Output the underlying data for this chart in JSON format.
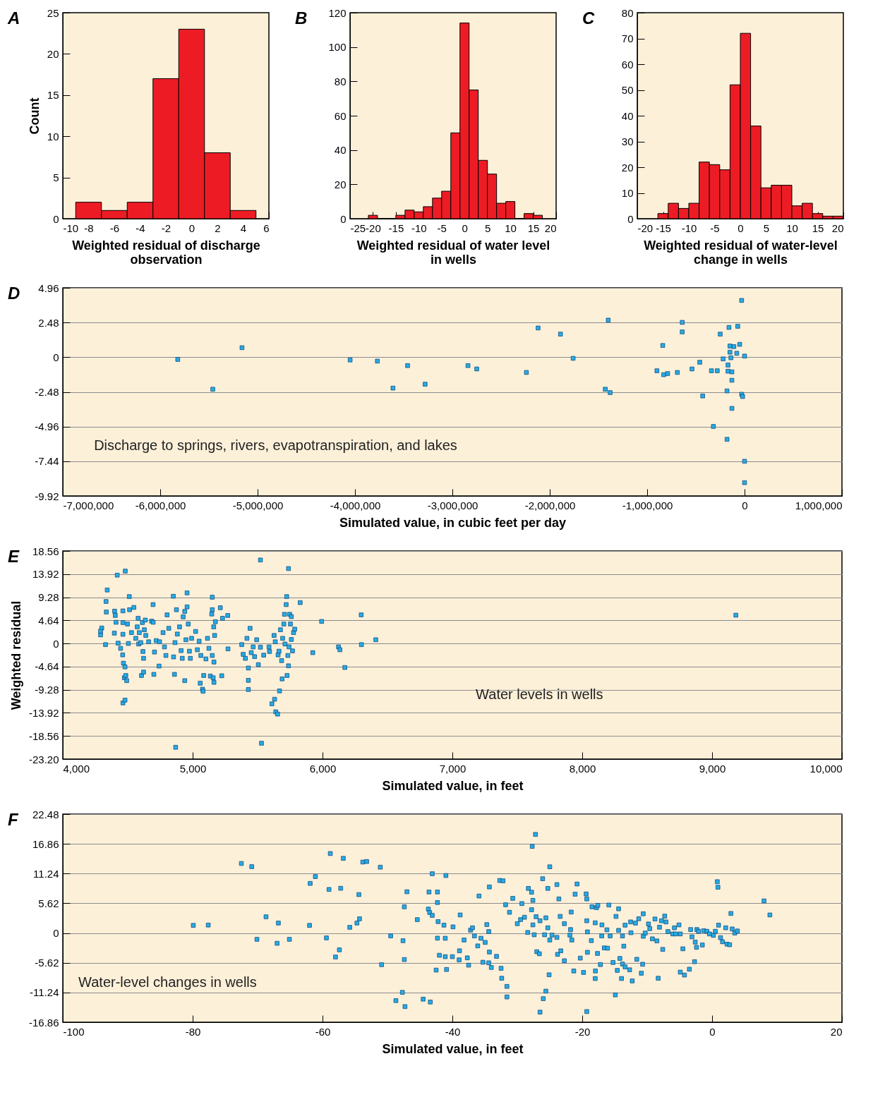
{
  "chart_data": [
    {
      "type": "histogram",
      "title": "A",
      "xlabel": "Weighted residual of discharge observation",
      "ylabel": "Count",
      "color": "#ed1c24",
      "bins": [
        -9,
        -7,
        -5,
        -3,
        -1,
        1,
        3,
        5
      ],
      "values": [
        2,
        1,
        2,
        17,
        23,
        8,
        1
      ],
      "xlim": [
        -10,
        6
      ],
      "xticks": [
        -10,
        -8,
        -6,
        -4,
        -2,
        0,
        2,
        4,
        6
      ],
      "ylim": [
        0,
        25
      ],
      "yticks": [
        0,
        5,
        10,
        15,
        20,
        25
      ],
      "grid": false
    },
    {
      "type": "histogram",
      "title": "B",
      "xlabel": "Weighted residual of water level in wells",
      "color": "#ed1c24",
      "bins": [
        -21,
        -19,
        -17,
        -15,
        -13,
        -11,
        -9,
        -7,
        -5,
        -3,
        -1,
        1,
        3,
        5,
        7,
        9,
        11,
        13,
        15,
        17
      ],
      "values": [
        2,
        0,
        0,
        2,
        5,
        4,
        7,
        12,
        16,
        50,
        114,
        75,
        34,
        26,
        9,
        10,
        0,
        3,
        2
      ],
      "xlim": [
        -25,
        20
      ],
      "xticks": [
        -25,
        -20,
        -15,
        -10,
        -5,
        0,
        5,
        10,
        15,
        20
      ],
      "ylim": [
        0,
        120
      ],
      "yticks": [
        0,
        20,
        40,
        60,
        80,
        100,
        120
      ],
      "grid": false
    },
    {
      "type": "histogram",
      "title": "C",
      "xlabel": "Weighted residual of water-level change in wells",
      "color": "#ed1c24",
      "bins": [
        -16,
        -14,
        -12,
        -10,
        -8,
        -6,
        -4,
        -2,
        0,
        2,
        4,
        6,
        8,
        10,
        12,
        14,
        16,
        18,
        20
      ],
      "values": [
        2,
        6,
        4,
        6,
        22,
        21,
        19,
        52,
        72,
        36,
        12,
        13,
        13,
        5,
        6,
        2,
        1,
        1
      ],
      "xlim": [
        -20,
        20
      ],
      "xticks": [
        -20,
        -15,
        -10,
        -5,
        0,
        5,
        10,
        15,
        20
      ],
      "ylim": [
        0,
        80
      ],
      "yticks": [
        0,
        10,
        20,
        30,
        40,
        50,
        60,
        70,
        80
      ],
      "grid": false
    },
    {
      "type": "scatter",
      "title": "D",
      "xlabel": "Simulated value, in cubic feet per day",
      "color": "#29abe2",
      "marker": "square",
      "grid": "y",
      "annotations": [
        "Discharge to springs, rivers, evapotranspiration, and lakes"
      ],
      "x": [
        -5820000,
        -5460000,
        -5160000,
        -4050000,
        -3770000,
        -3610000,
        -3460000,
        -3280000,
        -2840000,
        -2750000,
        -2240000,
        -2120000,
        -1890000,
        -1760000,
        -1430000,
        -1400000,
        -1380000,
        -900000,
        -840000,
        -830000,
        -790000,
        -690000,
        -640000,
        -640000,
        -540000,
        -460000,
        -430000,
        -340000,
        -320000,
        -280000,
        -250000,
        -220000,
        -180000,
        -180000,
        -170000,
        -170000,
        -160000,
        -150000,
        -150000,
        -140000,
        -130000,
        -130000,
        -130000,
        -110000,
        -80000,
        -70000,
        -50000,
        -30000,
        -20000,
        -30000,
        0,
        0,
        0
      ],
      "values": [
        -0.16,
        -2.29,
        0.68,
        -0.2,
        -0.28,
        -2.21,
        -0.6,
        -1.93,
        -0.6,
        -0.84,
        -1.09,
        2.09,
        1.65,
        -0.08,
        -2.29,
        2.65,
        -2.53,
        -0.97,
        0.84,
        -1.25,
        -1.17,
        -1.09,
        2.49,
        1.81,
        -0.84,
        -0.36,
        -2.77,
        -0.97,
        -4.95,
        -0.97,
        1.65,
        -0.12,
        -2.41,
        -5.87,
        -1.0,
        -0.56,
        2.13,
        0.8,
        0.36,
        -0.04,
        -1.05,
        -1.65,
        -3.66,
        0.76,
        0.28,
        2.21,
        0.92,
        -2.65,
        -2.81,
        4.06,
        0.08,
        -7.44,
        -8.97
      ],
      "xlim": [
        -7000000,
        1000000
      ],
      "xticks": [
        {
          "value": -7000000,
          "label": "-7,000,000"
        },
        {
          "value": -6000000,
          "label": "-6,000,000"
        },
        {
          "value": -5000000,
          "label": "-5,000,000"
        },
        {
          "value": -4000000,
          "label": "-4,000,000"
        },
        {
          "value": -3000000,
          "label": "-3,000,000"
        },
        {
          "value": -2000000,
          "label": "-2,000,000"
        },
        {
          "value": -1000000,
          "label": "-1,000,000"
        },
        0,
        {
          "value": 1000000,
          "label": "1,000,000"
        }
      ],
      "ylim": [
        -9.92,
        4.96
      ],
      "yticks": [
        -9.92,
        -7.44,
        -4.96,
        -2.48,
        0,
        2.48,
        4.96
      ]
    },
    {
      "type": "scatter",
      "title": "E",
      "xlabel": "Simulated value, in feet",
      "ylabel": "Weighted residual",
      "color": "#29abe2",
      "marker": "square",
      "grid": "y",
      "annotations": [
        "Water levels in wells"
      ],
      "x": [
        4291,
        4300,
        4291,
        4329,
        4333,
        4342,
        4335,
        4397,
        4399,
        4404,
        4410,
        4419,
        4426,
        4445,
        4461,
        4463,
        4463,
        4463,
        4467,
        4479,
        4481,
        4463,
        4479,
        4474,
        4492,
        4485,
        4498,
        4505,
        4512,
        4514,
        4529,
        4547,
        4562,
        4573,
        4580,
        4584,
        4589,
        4600,
        4613,
        4617,
        4622,
        4628,
        4635,
        4639,
        4606,
        4622,
        4661,
        4684,
        4695,
        4696,
        4701,
        4706,
        4719,
        4741,
        4745,
        4772,
        4783,
        4794,
        4803,
        4816,
        4851,
        4853,
        4860,
        4864,
        4869,
        4875,
        4882,
        4899,
        4911,
        4920,
        4927,
        4939,
        4939,
        4948,
        4957,
        4957,
        4966,
        4975,
        4982,
        4992,
        5023,
        5036,
        5050,
        5058,
        5063,
        5076,
        5080,
        5085,
        5102,
        5114,
        5125,
        5136,
        5147,
        5151,
        5151,
        5151,
        5158,
        5162,
        5164,
        5164,
        5169,
        5175,
        5213,
        5224,
        5230,
        5270,
        5272,
        5378,
        5389,
        5406,
        5418,
        5429,
        5429,
        5429,
        5442,
        5451,
        5466,
        5477,
        5493,
        5506,
        5522,
        5530,
        5522,
        5547,
        5588,
        5592,
        5610,
        5627,
        5631,
        5636,
        5640,
        5654,
        5658,
        5665,
        5669,
        5676,
        5685,
        5689,
        5693,
        5702,
        5707,
        5711,
        5720,
        5724,
        5727,
        5733,
        5738,
        5738,
        5742,
        5747,
        5753,
        5760,
        5760,
        5769,
        5777,
        5786,
        5828,
        5925,
        5993,
        6123,
        6134,
        6172,
        6298,
        6300,
        6410,
        9183
      ],
      "values": [
        1.72,
        3.1,
        2.47,
        -0.23,
        8.43,
        10.73,
        6.31,
        2.07,
        6.48,
        5.62,
        4.25,
        13.71,
        0.06,
        -0.98,
        -2.29,
        6.54,
        4.19,
        1.84,
        -3.96,
        -4.7,
        14.52,
        -11.93,
        -11.36,
        -6.88,
        -7.46,
        -6.43,
        3.9,
        0,
        9.41,
        6.77,
        2.18,
        7.23,
        1.03,
        3.33,
        5.05,
        -0.11,
        2.18,
        0.17,
        4.19,
        -1.61,
        -2.98,
        2.75,
        4.7,
        1.61,
        -6.43,
        -5.74,
        0.34,
        4.48,
        7.8,
        4.25,
        -6.2,
        -1.72,
        0.57,
        -4.53,
        0.34,
        2.18,
        -0.69,
        -2.41,
        5.74,
        3.04,
        9.47,
        -2.7,
        -6.2,
        0.17,
        -20.83,
        6.77,
        1.89,
        3.33,
        -1.43,
        -2.98,
        5.34,
        -7.46,
        6.43,
        0.75,
        10.15,
        7.34,
        3.9,
        -1.55,
        -2.98,
        1.03,
        2.41,
        -1.26,
        0.46,
        -7.97,
        -2.41,
        -9.18,
        -9.58,
        -6.43,
        -3.1,
        1.03,
        -0.98,
        -6.54,
        5.91,
        9.29,
        6.77,
        -2.41,
        -6.88,
        3.33,
        -7.8,
        -3.73,
        1.61,
        4.36,
        7.17,
        -6.48,
        5.05,
        5.62,
        -1.09,
        -0.23,
        -2.18,
        -2.98,
        1.03,
        -4.93,
        -7.4,
        -9.24,
        3.04,
        -1.84,
        -0.69,
        -2.64,
        0.75,
        -4.25,
        16.75,
        -20.02,
        -0.75,
        -2.35,
        -0.69,
        -1.61,
        -12.11,
        1.61,
        -11.19,
        0.34,
        -13.71,
        -14.17,
        -2.29,
        -1.55,
        -9.52,
        2.75,
        -3.44,
        -7.11,
        1.03,
        3.9,
        5.85,
        -0.11,
        7.8,
        9.41,
        -6.43,
        -2.41,
        15.03,
        -4.48,
        -0.69,
        5.85,
        3.9,
        5.39,
        0.8,
        -1.49,
        2.18,
        2.87,
        8.2,
        -1.84,
        4.42,
        -0.69,
        -1.26,
        -4.82,
        5.74,
        -0.23,
        0.75,
        5.68
      ],
      "xlim": [
        4000,
        10000
      ],
      "xticks": [
        {
          "value": 4000,
          "label": "4,000"
        },
        {
          "value": 5000,
          "label": "5,000"
        },
        {
          "value": 6000,
          "label": "6,000"
        },
        {
          "value": 7000,
          "label": "7,000"
        },
        {
          "value": 8000,
          "label": "8,000"
        },
        {
          "value": 9000,
          "label": "9,000"
        },
        {
          "value": 10000,
          "label": "10,000"
        }
      ],
      "ylim": [
        -23.2,
        18.56
      ],
      "yticks": [
        {
          "value": -23.2,
          "label": "-23.20"
        },
        -18.56,
        -13.92,
        -9.28,
        -4.64,
        0,
        4.64,
        9.28,
        13.92,
        18.56
      ]
    },
    {
      "type": "scatter",
      "title": "F",
      "xlabel": "Simulated value, in feet",
      "color": "#29abe2",
      "marker": "square",
      "grid": "y",
      "annotations": [
        "Water-level changes in wells"
      ],
      "x": [
        -79.9,
        -77.6,
        -72.5,
        -70.9,
        -70.1,
        -68.7,
        -67.0,
        -66.8,
        -65.1,
        -62.0,
        -61.9,
        -61.1,
        -59.4,
        -59.0,
        -58.8,
        -58.0,
        -57.4,
        -57.2,
        -56.8,
        -55.8,
        -54.7,
        -54.4,
        -54.3,
        -53.8,
        -53.2,
        -51.1,
        -50.9,
        -49.5,
        -48.7,
        -47.7,
        -47.6,
        -47.4,
        -47.4,
        -47.3,
        -47.0,
        -45.4,
        -44.5,
        -43.7,
        -43.6,
        -43.5,
        -43.4,
        -43.1,
        -43.1,
        -42.5,
        -42.3,
        -42.3,
        -42.2,
        -42.3,
        -42.0,
        -41.0,
        -41.3,
        -41.1,
        -41.1,
        -40.9,
        -40.0,
        -39.9,
        -38.8,
        -38.9,
        -38.96,
        -38.2,
        -37.7,
        -37.5,
        -37.2,
        -36.9,
        -36.6,
        -36.1,
        -35.9,
        -35.6,
        -35.3,
        -34.95,
        -34.7,
        -34.4,
        -34.3,
        -34.3,
        -34.4,
        -34.0,
        -33.2,
        -32.7,
        -32.2,
        -32.5,
        -32.4,
        -31.8,
        -31.6,
        -31.6,
        -31.2,
        -30.7,
        -30.0,
        -29.5,
        -29.3,
        -28.9,
        -28.4,
        -28.3,
        -27.8,
        -27.8,
        -27.7,
        -27.6,
        -27.6,
        -27.4,
        -27.2,
        -27.1,
        -27.0,
        -26.6,
        -26.5,
        -26.5,
        -26.1,
        -26.0,
        -25.8,
        -25.6,
        -25.6,
        -25.3,
        -25.3,
        -25.1,
        -25.0,
        -25.0,
        -24.65,
        -23.9,
        -23.9,
        -23.8,
        -23.6,
        -23.4,
        -23.3,
        -22.75,
        -22.75,
        -21.9,
        -21.8,
        -21.7,
        -21.6,
        -21.3,
        -21.1,
        -20.8,
        -20.3,
        -19.8,
        -19.4,
        -19.3,
        -19.3,
        -19.2,
        -19.3,
        -19.2,
        -18.6,
        -18.5,
        -18.0,
        -17.97,
        -18.0,
        -17.8,
        -17.65,
        -17.6,
        -17.2,
        -17.0,
        -16.97,
        -16.6,
        -16.2,
        -16.1,
        -15.9,
        -15.7,
        -15.26,
        -14.9,
        -14.8,
        -14.6,
        -14.4,
        -14.4,
        -14.2,
        -13.95,
        -13.8,
        -13.8,
        -13.6,
        -13.4,
        -13.4,
        -12.7,
        -12.55,
        -12.5,
        -12.3,
        -11.8,
        -11.6,
        -11.3,
        -10.9,
        -10.7,
        -10.6,
        -10.6,
        -10.3,
        -9.8,
        -9.6,
        -9.2,
        -8.8,
        -8.5,
        -8.3,
        -8.1,
        -7.8,
        -7.6,
        -7.3,
        -7.1,
        -6.8,
        -6.05,
        -5.8,
        -5.6,
        -5.1,
        -4.9,
        -4.9,
        -4.5,
        -4.25,
        -3.5,
        -3.3,
        -3.1,
        -2.7,
        -2.6,
        -2.4,
        -2.35,
        -2.1,
        -1.5,
        -1.3,
        -0.8,
        -0.4,
        0.2,
        0.5,
        0.8,
        0.9,
        1.0,
        1.3,
        1.6,
        2.1,
        2.3,
        2.7,
        2.9,
        3.1,
        3.5,
        3.9,
        8.0,
        8.9
      ],
      "values": [
        1.45,
        1.51,
        13.15,
        12.55,
        -1.19,
        3.07,
        -1.94,
        1.89,
        -1.19,
        1.45,
        9.38,
        10.67,
        -0.92,
        8.24,
        15.03,
        -4.53,
        -3.18,
        8.46,
        14.12,
        1.08,
        1.89,
        7.27,
        2.69,
        13.42,
        13.52,
        12.45,
        -5.98,
        -0.54,
        -12.77,
        -11.21,
        -1.45,
        4.96,
        -5.01,
        -13.9,
        7.81,
        2.53,
        -12.5,
        4.53,
        7.76,
        3.88,
        -13.04,
        11.21,
        3.34,
        -7.0,
        7.76,
        5.77,
        2.16,
        -0.97,
        -4.2,
        10.87,
        1.49,
        -0.99,
        -4.47,
        -6.89,
        -4.47,
        1.16,
        3.42,
        -3.36,
        -5.07,
        -1.32,
        -4.69,
        -6.07,
        0.55,
        0.99,
        -0.55,
        -2.43,
        7.0,
        -0.99,
        -5.52,
        -1.77,
        1.6,
        0.28,
        -3.59,
        8.71,
        -5.63,
        -6.51,
        -4.41,
        9.93,
        9.87,
        -6.67,
        -8.55,
        5.35,
        -10.09,
        -12.08,
        3.92,
        6.56,
        1.77,
        2.54,
        5.57,
        2.98,
        0.11,
        8.44,
        7.72,
        4.41,
        16.38,
        6.18,
        1.54,
        -0.33,
        18.64,
        3.09,
        -3.53,
        -3.92,
        2.32,
        -14.95,
        10.26,
        -12.41,
        -0.33,
        2.87,
        -10.98,
        8.44,
        0.99,
        -7.89,
        12.52,
        -1.32,
        -0.39,
        9.16,
        -0.83,
        -4.03,
        6.45,
        3.14,
        -3.36,
        1.77,
        -5.24,
        -0.39,
        0.66,
        3.97,
        -1.32,
        -7.17,
        7.34,
        9.27,
        -4.74,
        -7.45,
        7.39,
        2.32,
        6.45,
        -3.64,
        -14.84,
        0.22,
        -1.43,
        4.96,
        -8.6,
        -7.17,
        1.93,
        4.8,
        -3.86,
        5.24,
        -5.96,
        -0.55,
        1.54,
        -2.81,
        0.61,
        -2.87,
        5.3,
        -0.55,
        -5.57,
        -11.69,
        3.14,
        -7.06,
        4.58,
        0.5,
        -4.8,
        -8.6,
        -0.55,
        -5.85,
        -2.48,
        1.49,
        -6.4,
        -6.95,
        2.1,
        0.06,
        -9.05,
        1.88,
        -4.96,
        2.7,
        -7.6,
        -5.9,
        3.64,
        -0.61,
        0,
        1.71,
        0.83,
        -1.1,
        2.65,
        -1.49,
        -8.55,
        1.1,
        2.32,
        -3.09,
        3.2,
        2.1,
        0.28,
        -0.17,
        0.99,
        -0.17,
        1.54,
        -0.17,
        -7.39,
        -2.98,
        -7.94,
        -6.84,
        0.66,
        -0.72,
        -5.41,
        -1.71,
        -2.7,
        0.66,
        0.33,
        -2.26,
        0.44,
        0.33,
        -0.17,
        -0.44,
        0.33,
        9.71,
        8.66,
        1.49,
        -0.88,
        -1.65,
        0.99,
        -2.1,
        -2.21,
        3.7,
        0.77,
        0,
        0.39,
        6.07,
        3.42
      ],
      "xlim": [
        -100,
        20
      ],
      "xticks": [
        -100,
        -80,
        -60,
        -40,
        -20,
        0,
        20
      ],
      "ylim": [
        -16.86,
        22.48
      ],
      "yticks": [
        -16.86,
        -11.24,
        -5.62,
        0,
        5.62,
        11.24,
        16.86,
        22.48
      ]
    }
  ]
}
